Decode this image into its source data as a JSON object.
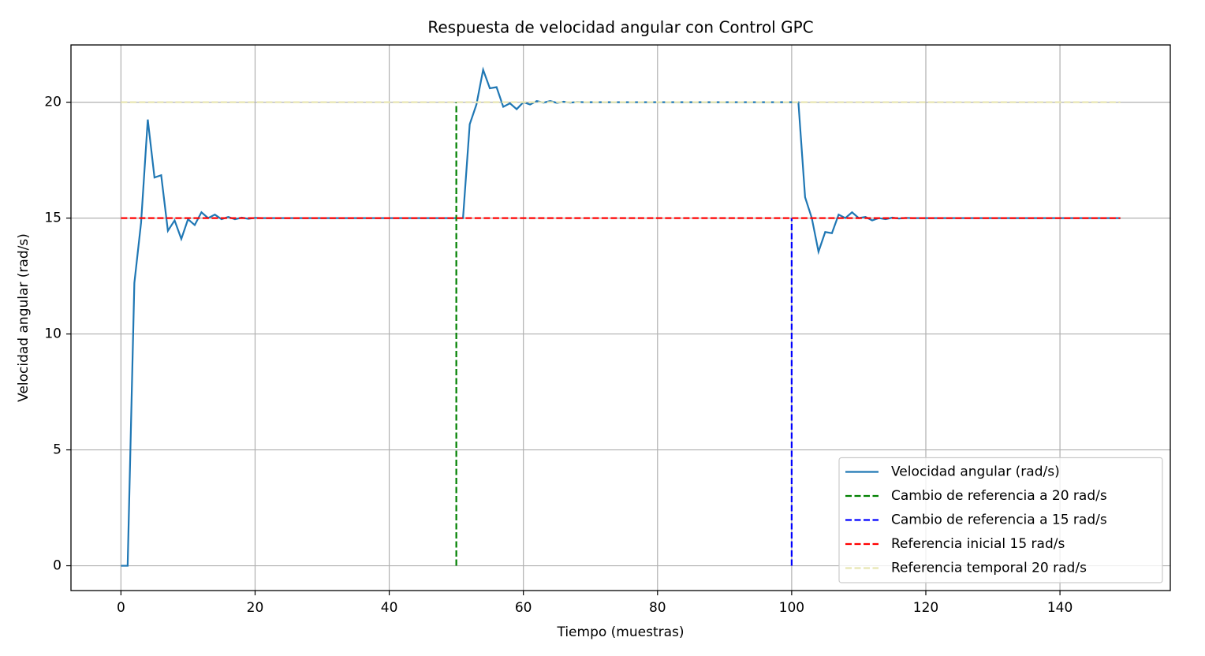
{
  "chart_data": {
    "type": "line",
    "title": "Respuesta de velocidad angular con Control GPC",
    "x_label": "Tiempo (muestras)",
    "y_label": "Velocidad angular (rad/s)",
    "xlim": [
      -7.45,
      156.45
    ],
    "ylim": [
      -1.07,
      22.47
    ],
    "xticks": [
      0,
      20,
      40,
      60,
      80,
      100,
      120,
      140
    ],
    "yticks": [
      0,
      5,
      10,
      15,
      20
    ],
    "grid": true,
    "legend": "lower right",
    "series": [
      {
        "name": "Velocidad angular (rad/s)",
        "color": "#1f77b4",
        "dash": "solid",
        "x": [
          0,
          1,
          2,
          3,
          4,
          5,
          6,
          7,
          8,
          9,
          10,
          11,
          12,
          13,
          14,
          15,
          16,
          17,
          18,
          19,
          20,
          21,
          22,
          23,
          24,
          25,
          26,
          27,
          28,
          29,
          30,
          31,
          32,
          33,
          34,
          35,
          36,
          37,
          38,
          39,
          40,
          41,
          42,
          43,
          44,
          45,
          46,
          47,
          48,
          49,
          50,
          51,
          52,
          53,
          54,
          55,
          56,
          57,
          58,
          59,
          60,
          61,
          62,
          63,
          64,
          65,
          66,
          67,
          68,
          69,
          70,
          71,
          72,
          73,
          74,
          75,
          76,
          77,
          78,
          79,
          80,
          81,
          82,
          83,
          84,
          85,
          86,
          87,
          88,
          89,
          90,
          91,
          92,
          93,
          94,
          95,
          96,
          97,
          98,
          99,
          100,
          101,
          102,
          103,
          104,
          105,
          106,
          107,
          108,
          109,
          110,
          111,
          112,
          113,
          114,
          115,
          116,
          117,
          118,
          119,
          120,
          121,
          122,
          123,
          124,
          125,
          126,
          127,
          128,
          129,
          130,
          131,
          132,
          133,
          134,
          135,
          136,
          137,
          138,
          139,
          140,
          141,
          142,
          143,
          144,
          145,
          146,
          147,
          148,
          149
        ],
        "values": [
          0,
          0,
          12.2,
          14.8,
          19.25,
          16.75,
          16.85,
          14.45,
          14.9,
          14.1,
          14.95,
          14.7,
          15.25,
          15.0,
          15.15,
          14.95,
          15.05,
          14.95,
          15.02,
          14.97,
          15.01,
          15,
          15,
          15,
          15,
          15,
          15,
          15,
          15,
          15,
          15,
          15,
          15,
          15,
          15,
          15,
          15,
          15,
          15,
          15,
          15,
          15,
          15,
          15,
          15,
          15,
          15,
          15,
          15,
          15,
          15,
          15,
          19.05,
          19.9,
          21.4,
          20.6,
          20.65,
          19.8,
          19.95,
          19.7,
          20.0,
          19.9,
          20.05,
          19.98,
          20.05,
          19.97,
          20.02,
          19.98,
          20.01,
          20,
          20,
          20,
          20,
          20,
          20,
          20,
          20,
          20,
          20,
          20,
          20,
          20,
          20,
          20,
          20,
          20,
          20,
          20,
          20,
          20,
          20,
          20,
          20,
          20,
          20,
          20,
          20,
          20,
          20,
          20,
          20,
          20,
          15.9,
          15.0,
          13.55,
          14.4,
          14.35,
          15.15,
          15.0,
          15.25,
          15.0,
          15.05,
          14.9,
          15.0,
          14.95,
          15.02,
          14.98,
          15.01,
          15,
          15,
          15,
          15,
          15,
          15,
          15,
          15,
          15,
          15,
          15,
          15,
          15,
          15,
          15,
          15,
          15,
          15,
          15,
          15,
          15,
          15,
          15,
          15,
          15,
          15,
          15,
          15,
          15,
          15,
          15,
          15
        ]
      },
      {
        "name": "Cambio de referencia a 20 rad/s",
        "color": "#008000",
        "dash": "dashed",
        "x": [
          50,
          50
        ],
        "values": [
          0,
          20
        ]
      },
      {
        "name": "Cambio de referencia a 15 rad/s",
        "color": "#0000ff",
        "dash": "dashed",
        "x": [
          100,
          100
        ],
        "values": [
          0,
          15
        ]
      },
      {
        "name": "Referencia inicial 15 rad/s",
        "color": "#ff0000",
        "dash": "dashed",
        "x": [
          0,
          149
        ],
        "values": [
          15,
          15
        ]
      },
      {
        "name": "Referencia temporal 20 rad/s",
        "color": "#e8e6b2",
        "dash": "dashed",
        "x": [
          0,
          149
        ],
        "values": [
          20,
          20
        ]
      }
    ]
  }
}
